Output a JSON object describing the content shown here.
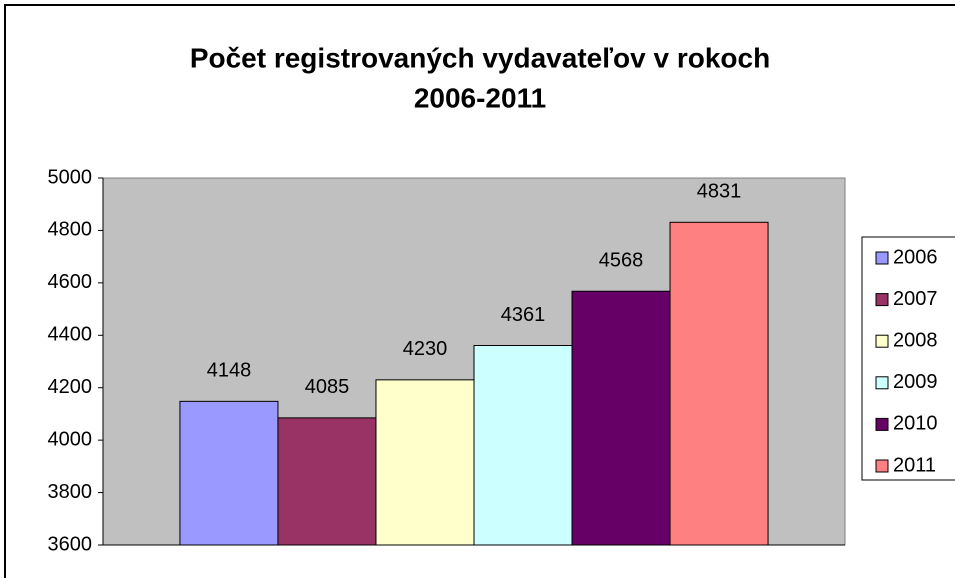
{
  "chart_data": {
    "type": "bar",
    "title": [
      "Počet registrovaných vydavateľov v rokoch",
      "2006-2011"
    ],
    "categories": [
      null
    ],
    "series": [
      {
        "name": "2006",
        "color": "#9999ff",
        "values": [
          4148
        ]
      },
      {
        "name": "2007",
        "color": "#993366",
        "values": [
          4085
        ]
      },
      {
        "name": "2008",
        "color": "#ffffcc",
        "values": [
          4230
        ]
      },
      {
        "name": "2009",
        "color": "#ccffff",
        "values": [
          4361
        ]
      },
      {
        "name": "2010",
        "color": "#660066",
        "values": [
          4568
        ]
      },
      {
        "name": "2011",
        "color": "#ff8080",
        "values": [
          4831
        ]
      }
    ],
    "ylim": [
      3600,
      5000
    ],
    "yticks": [
      3600,
      3800,
      4000,
      4200,
      4400,
      4600,
      4800,
      5000
    ],
    "grid": false,
    "legend": "right",
    "plot_background": "#c0c0c0"
  }
}
